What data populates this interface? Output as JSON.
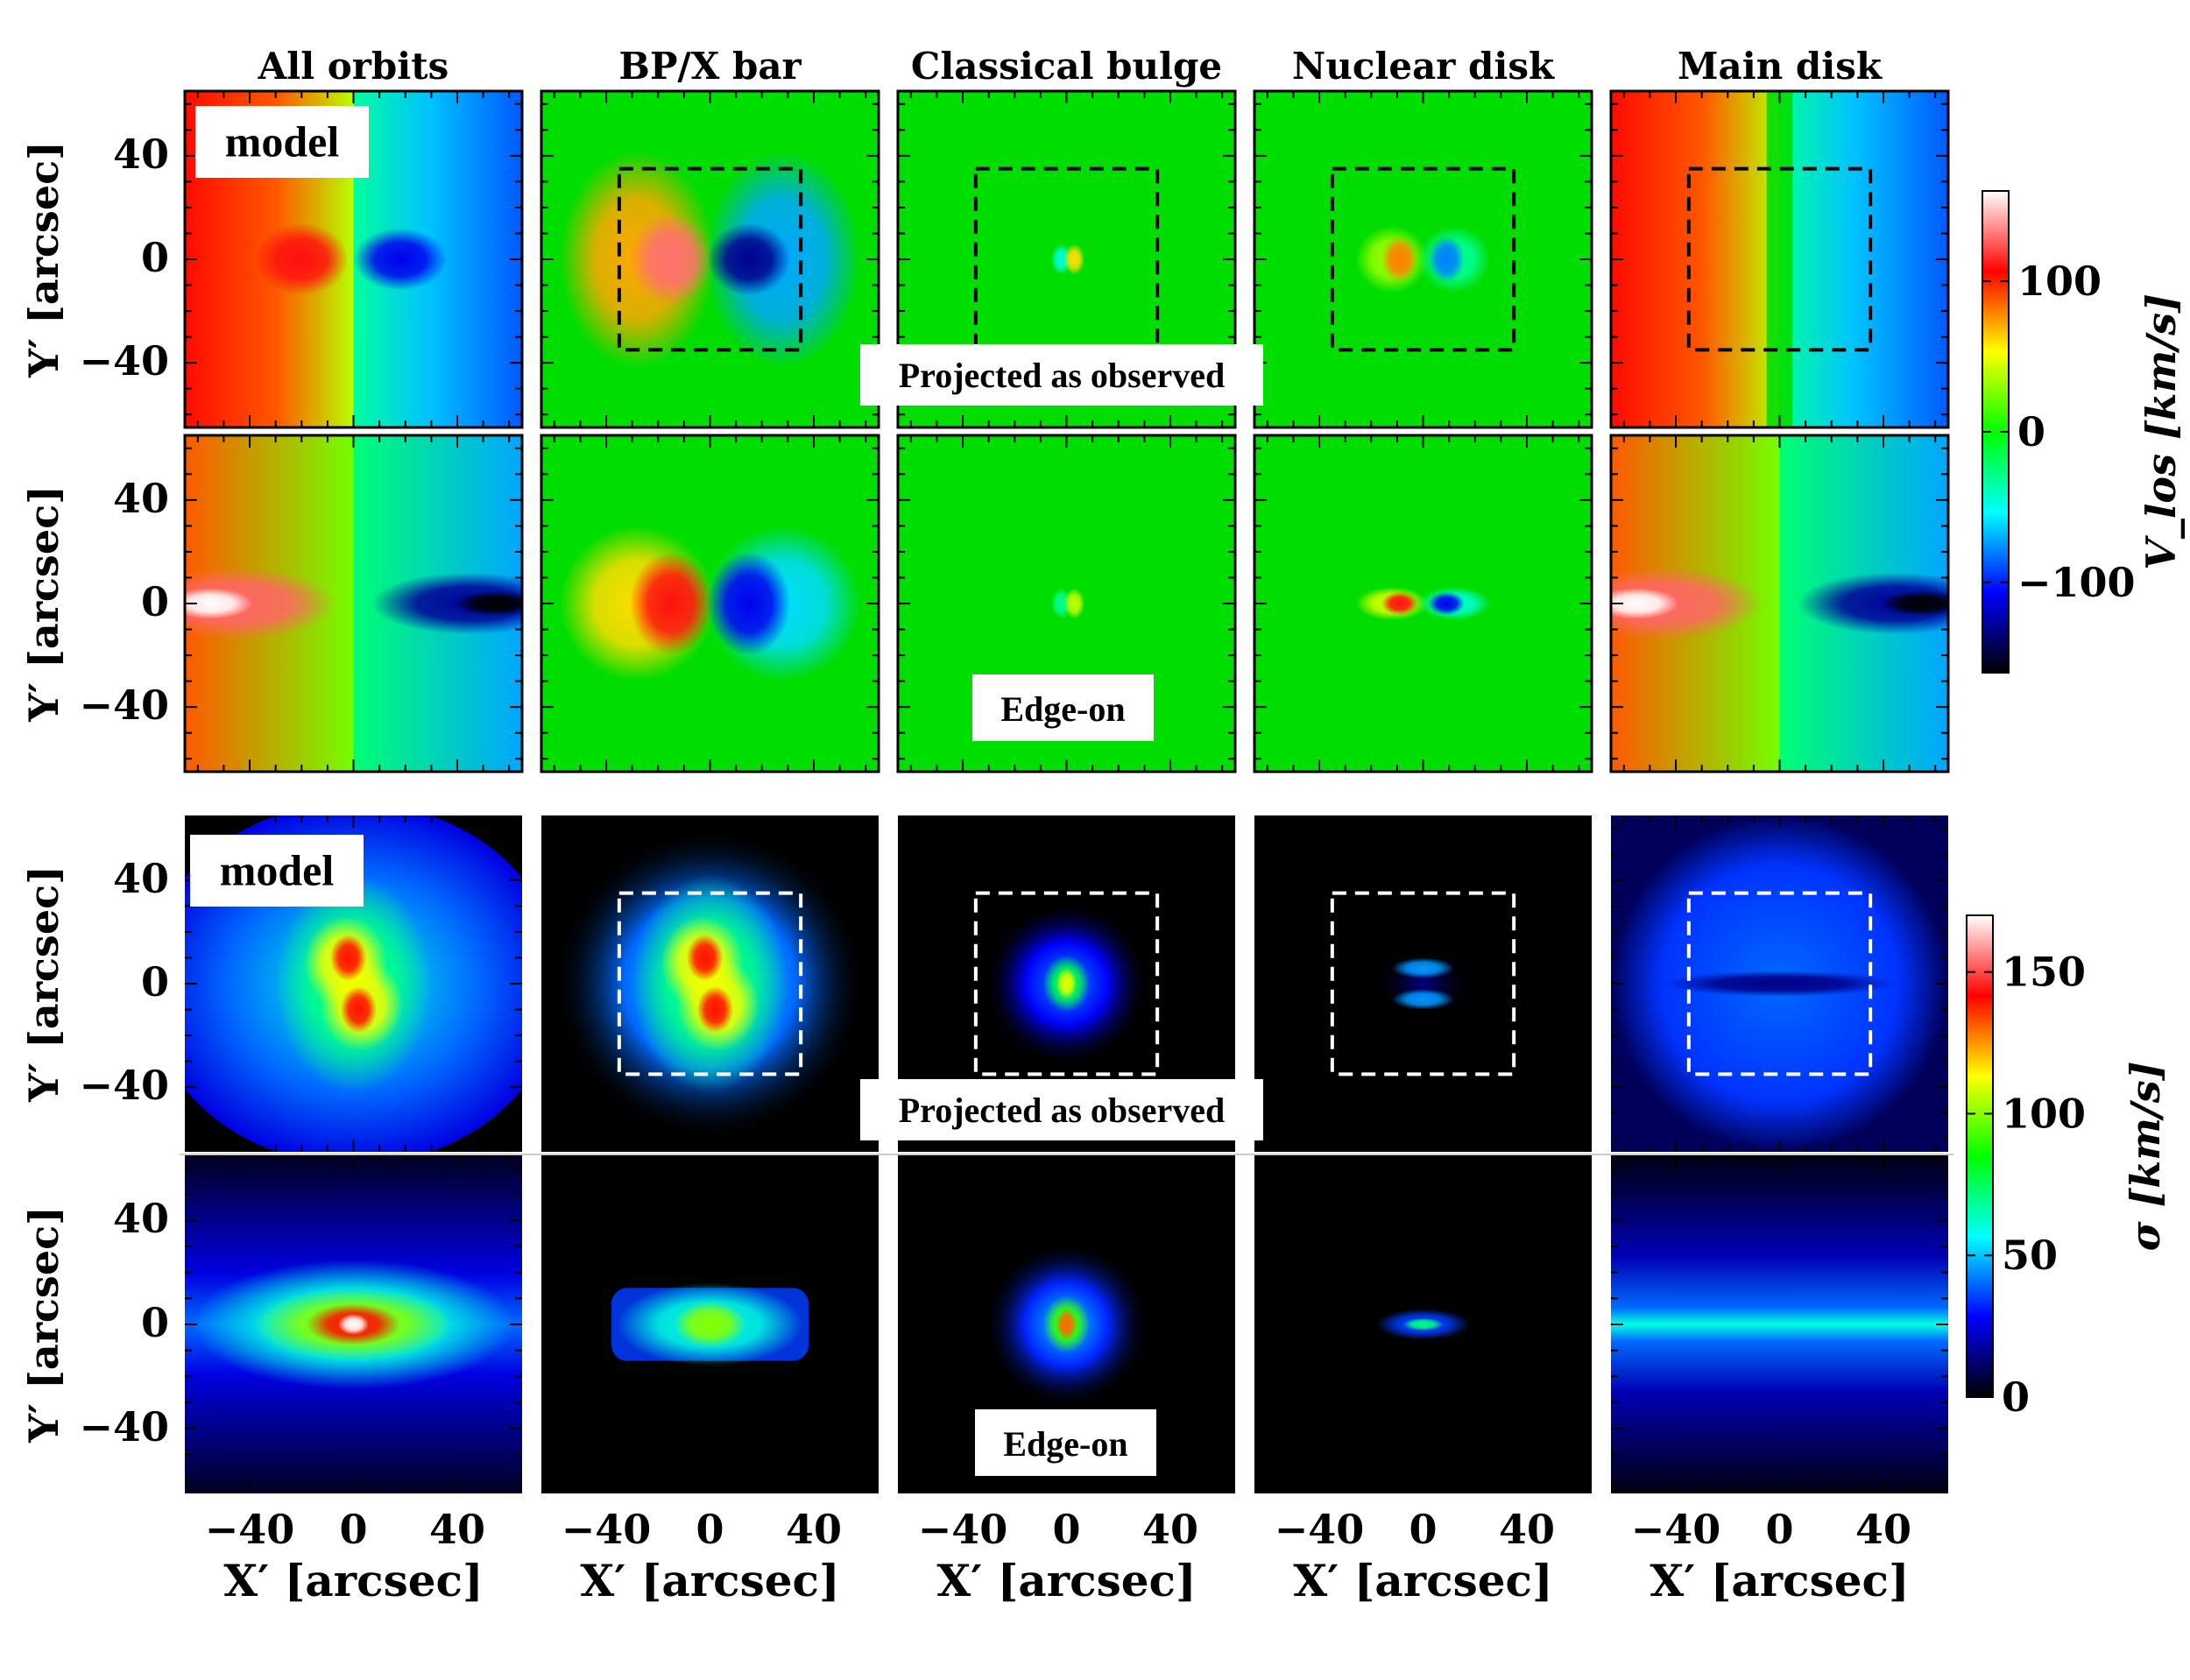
{
  "figure": {
    "columns": [
      "All orbits",
      "BP/X bar",
      "Classical bulge",
      "Nuclear disk",
      "Main disk"
    ],
    "model_label": "model",
    "projected_label": "Projected as observed",
    "edgeon_label": "Edge-on",
    "y_axis_label": "Y′ [arcsec]",
    "x_axis_label": "X′ [arcsec]",
    "tick_labels": [
      "−40",
      "0",
      "40"
    ],
    "vlos_colorbar": {
      "label": "V_los [km/s]",
      "ticks": [
        100,
        0,
        -100
      ],
      "tick_labels": [
        "100",
        "0",
        "−100"
      ],
      "range": [
        -160,
        160
      ]
    },
    "sigma_colorbar": {
      "label": "σ [km/s]",
      "ticks": [
        150,
        100,
        50,
        0
      ],
      "tick_labels": [
        "150",
        "100",
        "50",
        "0"
      ],
      "range": [
        0,
        170
      ]
    }
  },
  "chart_data": {
    "type": "heatmap",
    "title": "",
    "xlabel": "X′ [arcsec]",
    "ylabel": "Y′ [arcsec]",
    "xlim": [
      -65,
      65
    ],
    "ylim": [
      -65,
      65
    ],
    "xticks": [
      -40,
      0,
      40
    ],
    "yticks": [
      -40,
      0,
      40
    ],
    "box_arcsec": 35,
    "quantities": [
      {
        "name": "V_los",
        "unit": "km/s",
        "panel_rows": [
          {
            "view": "Projected as observed",
            "components": [
              {
                "component": "All orbits",
                "amplitude": 110,
                "kind": "rotation",
                "show_box": false
              },
              {
                "component": "BP/X bar",
                "amplitude": 130,
                "kind": "bar",
                "show_box": true
              },
              {
                "component": "Classical bulge",
                "amplitude": 30,
                "kind": "bulge",
                "show_box": true
              },
              {
                "component": "Nuclear disk",
                "amplitude": 80,
                "kind": "nuclear",
                "show_box": true
              },
              {
                "component": "Main disk",
                "amplitude": 110,
                "kind": "disk",
                "show_box": true
              }
            ]
          },
          {
            "view": "Edge-on",
            "components": [
              {
                "component": "All orbits",
                "amplitude": 160,
                "kind": "rotation_edge",
                "show_box": false
              },
              {
                "component": "BP/X bar",
                "amplitude": 110,
                "kind": "bar_edge",
                "show_box": false
              },
              {
                "component": "Classical bulge",
                "amplitude": 20,
                "kind": "bulge",
                "show_box": false
              },
              {
                "component": "Nuclear disk",
                "amplitude": 110,
                "kind": "nuclear_edge",
                "show_box": false
              },
              {
                "component": "Main disk",
                "amplitude": 160,
                "kind": "disk_edge",
                "show_box": false
              }
            ]
          }
        ]
      },
      {
        "name": "sigma",
        "unit": "km/s",
        "panel_rows": [
          {
            "view": "Projected as observed",
            "components": [
              {
                "component": "All orbits",
                "peak": 140,
                "kind": "peanut",
                "show_box": false
              },
              {
                "component": "BP/X bar",
                "peak": 140,
                "kind": "peanut",
                "show_box": true
              },
              {
                "component": "Classical bulge",
                "peak": 110,
                "kind": "blob",
                "show_box": true
              },
              {
                "component": "Nuclear disk",
                "peak": 45,
                "kind": "double",
                "show_box": true
              },
              {
                "component": "Main disk",
                "peak": 40,
                "kind": "disk_face",
                "show_box": true
              }
            ]
          },
          {
            "view": "Edge-on",
            "components": [
              {
                "component": "All orbits",
                "peak": 170,
                "kind": "ellipse",
                "show_box": false
              },
              {
                "component": "BP/X bar",
                "peak": 100,
                "kind": "barbox",
                "show_box": false
              },
              {
                "component": "Classical bulge",
                "peak": 130,
                "kind": "blob",
                "show_box": false
              },
              {
                "component": "Nuclear disk",
                "peak": 70,
                "kind": "flat",
                "show_box": false
              },
              {
                "component": "Main disk",
                "peak": 60,
                "kind": "stripe",
                "show_box": false
              }
            ]
          }
        ]
      }
    ]
  },
  "colors": {
    "jet_stops": [
      "#000000",
      "#0000ff",
      "#00ffff",
      "#00ff00",
      "#ffff00",
      "#ff0000",
      "#ffffff"
    ],
    "vlos_zero": "#00dd00",
    "box_top": "#000000",
    "box_bottom": "#ffffff"
  }
}
